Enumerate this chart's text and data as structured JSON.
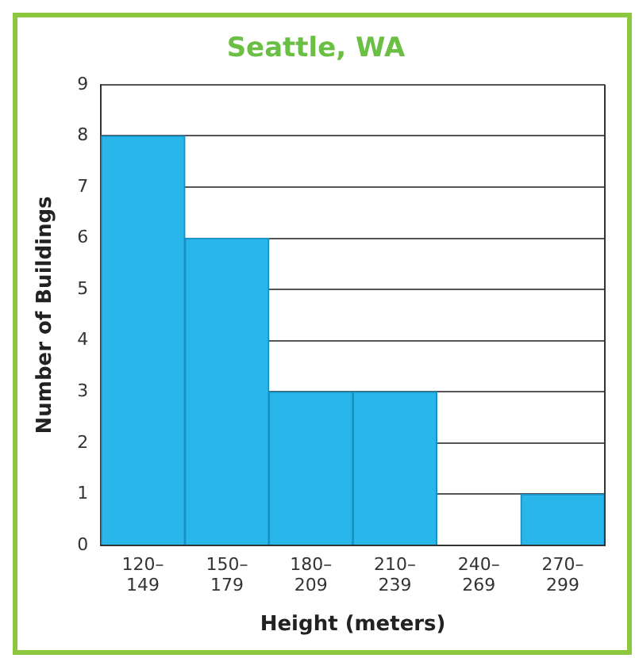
{
  "chart_data": {
    "type": "bar",
    "title": "Seattle, WA",
    "xlabel": "Height (meters)",
    "ylabel": "Number of Buildings",
    "categories": [
      "120–149",
      "150–179",
      "180–209",
      "210–239",
      "240–269",
      "270–299"
    ],
    "values": [
      8,
      6,
      3,
      3,
      0,
      1
    ],
    "color": "#29b6ea",
    "ylim": [
      0,
      9
    ],
    "yticks": [
      0,
      1,
      2,
      3,
      4,
      5,
      6,
      7,
      8,
      9
    ],
    "grid": "y",
    "legend": false
  }
}
